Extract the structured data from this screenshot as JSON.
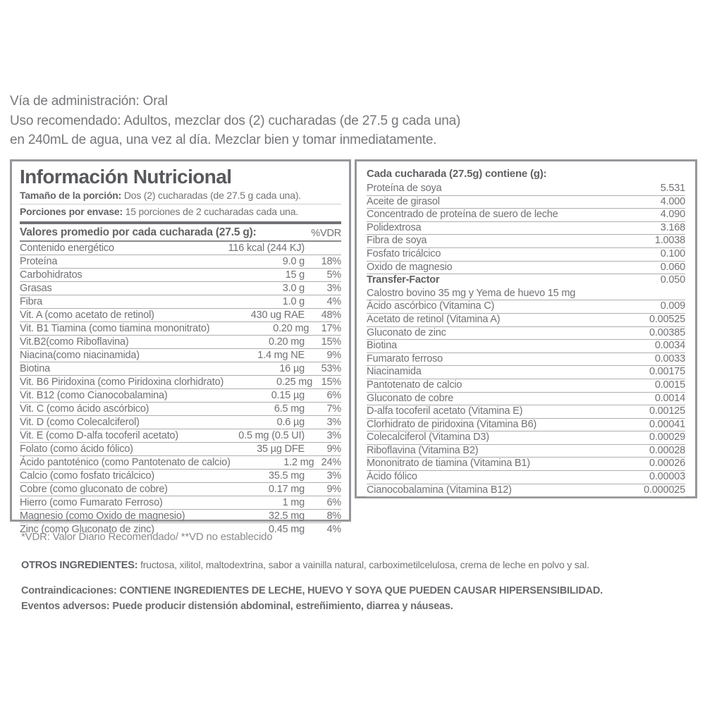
{
  "usage": {
    "line1": "Vía de administración: Oral",
    "line2": "Uso recomendado: Adultos, mezclar dos (2) cucharadas (de 27.5 g cada una)",
    "line3": "en 240mL de agua, una vez al día. Mezclar bien y tomar inmediatamente."
  },
  "nutrition_panel": {
    "title": "Información Nutricional",
    "serving_size_label": "Tamaño de la porción:",
    "serving_size_value": "Dos (2) cucharadas (de 27.5 g cada una).",
    "servings_per_container_label": "Porciones por envase:",
    "servings_per_container_value": "15 porciones de 2 cucharadas cada una.",
    "values_header": "Valores promedio por cada cucharada (27.5 g):",
    "vdr_header": "%VDR",
    "rows": [
      {
        "label": "Contenido energético",
        "amount": "116 kcal (244 KJ)",
        "vdr": ""
      },
      {
        "label": "Proteína",
        "amount": "9.0 g",
        "vdr": "18%"
      },
      {
        "label": "Carbohidratos",
        "amount": "15 g",
        "vdr": "5%"
      },
      {
        "label": "Grasas",
        "amount": "3.0 g",
        "vdr": "3%"
      },
      {
        "label": "Fibra",
        "amount": "1.0 g",
        "vdr": "4%"
      },
      {
        "label": "Vit. A (como acetato de retinol)",
        "amount": "430 ug RAE",
        "vdr": "48%"
      },
      {
        "label": "Vit. B1 Tiamina (como tiamina mononitrato)",
        "amount": "0.20 mg",
        "vdr": "17%"
      },
      {
        "label": "Vit.B2(como Riboflavina)",
        "amount": "0.20 mg",
        "vdr": "15%"
      },
      {
        "label": "Niacina(como niacinamida)",
        "amount": "1.4 mg NE",
        "vdr": "9%"
      },
      {
        "label": "Biotina",
        "amount": "16 µg",
        "vdr": "53%"
      },
      {
        "label": "Vit. B6 Piridoxina (como Piridoxina clorhidrato)",
        "amount": "0.25 mg",
        "vdr": "15%"
      },
      {
        "label": "Vit. B12 (como Cianocobalamina)",
        "amount": "0.15 µg",
        "vdr": "6%"
      },
      {
        "label": "Vit. C (como ácido ascórbico)",
        "amount": "6.5 mg",
        "vdr": "7%"
      },
      {
        "label": "Vit. D (como Colecalciferol)",
        "amount": "0.6 µg",
        "vdr": "3%"
      },
      {
        "label": "Vit. E (como D-alfa tocoferil acetato)",
        "amount": "0.5 mg (0.5 UI)",
        "vdr": "3%"
      },
      {
        "label": "Folato (como ácido fólico)",
        "amount": "35 µg DFE",
        "vdr": "9%"
      },
      {
        "label": "Ácido pantoténico (como Pantotenato de calcio)",
        "amount": "1.2 mg",
        "vdr": "24%"
      },
      {
        "label": "Calcio (como fosfato tricálcico)",
        "amount": "35.5 mg",
        "vdr": "3%"
      },
      {
        "label": "Cobre (como gluconato de cobre)",
        "amount": "0.17 mg",
        "vdr": "9%"
      },
      {
        "label": "Hierro (como Fumarato Ferroso)",
        "amount": "1 mg",
        "vdr": "6%"
      },
      {
        "label": "Magnesio (como Oxido de magnesio)",
        "amount": "32.5 mg",
        "vdr": "8%"
      },
      {
        "label": "Zinc (como Gluconato de zinc)",
        "amount": "0.45 mg",
        "vdr": "4%"
      }
    ]
  },
  "composition_panel": {
    "title": "Cada cucharada (27.5g) contiene (g):",
    "rows": [
      {
        "label": "Proteína de soya",
        "value": "5.531"
      },
      {
        "label": "Aceite de girasol",
        "value": "4.000"
      },
      {
        "label": "Concentrado de proteína de suero de leche",
        "value": "4.090"
      },
      {
        "label": "Polidextrosa",
        "value": "3.168"
      },
      {
        "label": "Fibra de soya",
        "value": "1.0038"
      },
      {
        "label": "Fosfato tricálcico",
        "value": "0.100"
      },
      {
        "label": "Oxido de magnesio",
        "value": "0.060"
      },
      {
        "label": "Transfer-Factor",
        "value": "0.050",
        "emphasis": true,
        "no_divider": true
      },
      {
        "label": "Calostro bovino 35 mg y Yema de huevo 15 mg",
        "value": ""
      },
      {
        "label": "Ácido ascórbico (Vitamina C)",
        "value": "0.009"
      },
      {
        "label": "Acetato de retinol (Vitamina A)",
        "value": "0.00525"
      },
      {
        "label": "Gluconato de zinc",
        "value": "0.00385"
      },
      {
        "label": "Biotina",
        "value": "0.0034"
      },
      {
        "label": "Fumarato ferroso",
        "value": "0.0033"
      },
      {
        "label": "Niacinamida",
        "value": "0.00175"
      },
      {
        "label": "Pantotenato de calcio",
        "value": "0.0015"
      },
      {
        "label": "Gluconato de cobre",
        "value": "0.0014"
      },
      {
        "label": "D-alfa tocoferil acetato (Vitamina E)",
        "value": "0.00125"
      },
      {
        "label": "Clorhidrato de piridoxina (Vitamina B6)",
        "value": "0.00041"
      },
      {
        "label": "Colecalciferol (Vitamina D3)",
        "value": "0.00029"
      },
      {
        "label": "Riboflavina (Vitamina B2)",
        "value": "0.00028"
      },
      {
        "label": "Mononitrato de tiamina (Vitamina B1)",
        "value": "0.00026"
      },
      {
        "label": "Ácido fólico",
        "value": "0.00003"
      },
      {
        "label": "Cianocobalamina (Vitamina B12)",
        "value": "0.000025"
      }
    ]
  },
  "footnotes": {
    "vdr_note": "*VDR: Valor Diario Recomendado/ **VD no establecido",
    "other_ingredients_label": "OTROS INGREDIENTES:",
    "other_ingredients_text": " fructosa, xilitol, maltodextrina, sabor a vainilla natural, carboximetilcelulosa, crema de leche en polvo y sal.",
    "contraindications_label": "Contraindicaciones:",
    "contraindications_text": " CONTIENE INGREDIENTES DE LECHE, HUEVO Y SOYA QUE PUEDEN CAUSAR HIPERSENSIBILIDAD.",
    "adverse_events_label": "Eventos adversos:",
    "adverse_events_text": " Puede producir distensión abdominal, estreñimiento, diarrea y náuseas."
  }
}
